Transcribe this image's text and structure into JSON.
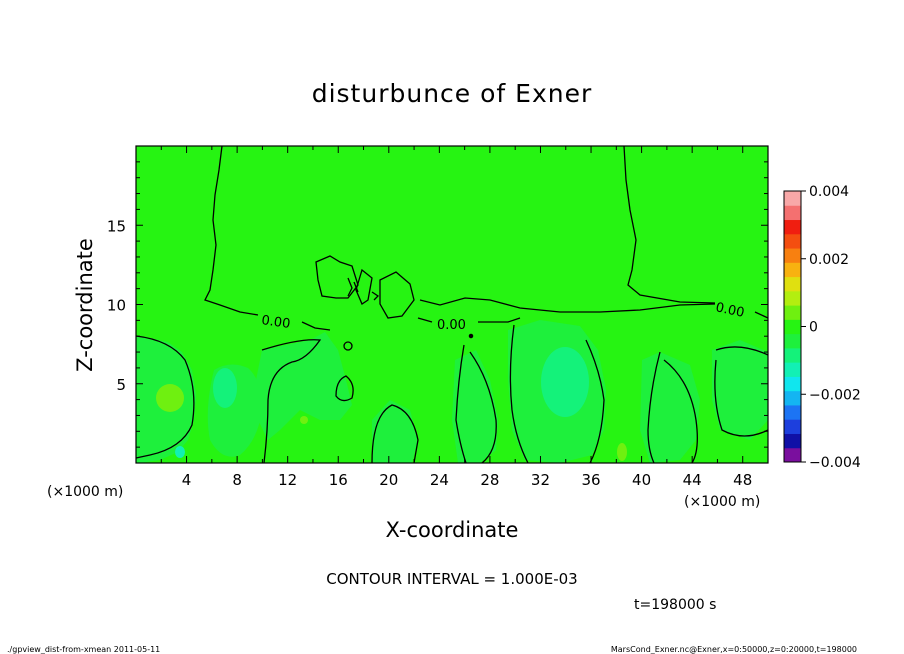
{
  "chart_data": {
    "type": "heatmap",
    "title": "disturbunce of Exner",
    "xlabel": "X-coordinate",
    "ylabel": "Z-coordinate",
    "x_unit_left": "(×1000 m)",
    "x_unit_right": "(×1000 m)",
    "xlim": [
      0,
      50
    ],
    "ylim": [
      0,
      20
    ],
    "x_ticks": [
      4,
      8,
      12,
      16,
      20,
      24,
      28,
      32,
      36,
      40,
      44,
      48
    ],
    "y_ticks": [
      5,
      10,
      15
    ],
    "colorbar": {
      "range": [
        -0.004,
        0.004
      ],
      "tick_labels": [
        "0.004",
        "0.002",
        "0",
        "−0.002",
        "−0.004"
      ],
      "tick_values": [
        0.004,
        0.002,
        0,
        -0.002,
        -0.004
      ],
      "colors": [
        "#7a0f9e",
        "#1010a6",
        "#1d3fdd",
        "#1c74f4",
        "#14b5f2",
        "#10e6ee",
        "#12f0b4",
        "#14f27a",
        "#1ef03c",
        "#26f412",
        "#6ff010",
        "#b3ee10",
        "#e0e010",
        "#f8b210",
        "#f88010",
        "#f44e10",
        "#f01e10",
        "#f47070",
        "#f8a8a8"
      ]
    },
    "background_color": "#26f412",
    "contour_labels": [
      "0.00",
      "0.00",
      "0.00"
    ],
    "contour_interval": "CONTOUR INTERVAL = 1.000E-03",
    "time_label": "t=198000 s"
  },
  "footer": {
    "left": "./gpview_dist-from-xmean 2011-05-11",
    "right": "MarsCond_Exner.nc@Exner,x=0:50000,z=0:20000,t=198000"
  }
}
